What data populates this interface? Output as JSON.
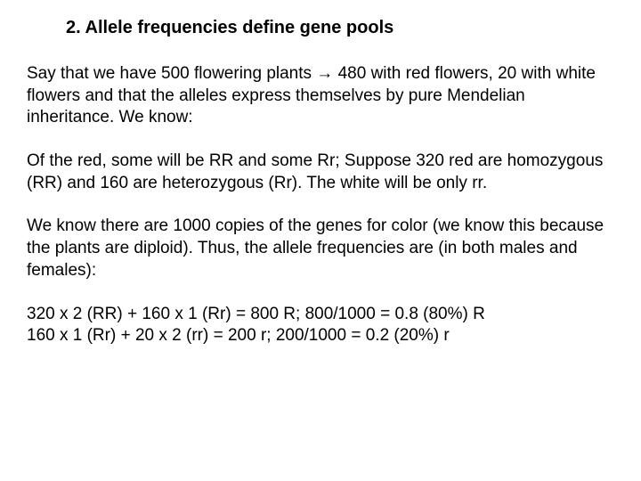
{
  "title": "2.  Allele frequencies define gene pools",
  "paragraph1": "Say that we have 500 flowering plants → 480 with red flowers, 20 with white flowers and that the alleles express themselves by pure Mendelian inheritance.  We know:",
  "paragraph2": "Of the red, some will be RR and some Rr;  Suppose 320 red are homozygous (RR) and 160 are heterozygous (Rr).  The white will be only rr.",
  "paragraph3": "We know there are 1000 copies of the genes for color (we know this because the plants are diploid).  Thus, the allele frequencies are (in both males and females):",
  "calc1": "320 x 2 (RR) + 160 x 1 (Rr) = 800 R;  800/1000 = 0.8 (80%) R",
  "calc2": "160 x 1 (Rr) + 20 x 2 (rr) = 200 r;  200/1000 = 0.2 (20%) r",
  "style": {
    "background_color": "#ffffff",
    "text_color": "#000000",
    "title_fontsize": 20,
    "body_fontsize": 19,
    "font_family": "Arial"
  }
}
